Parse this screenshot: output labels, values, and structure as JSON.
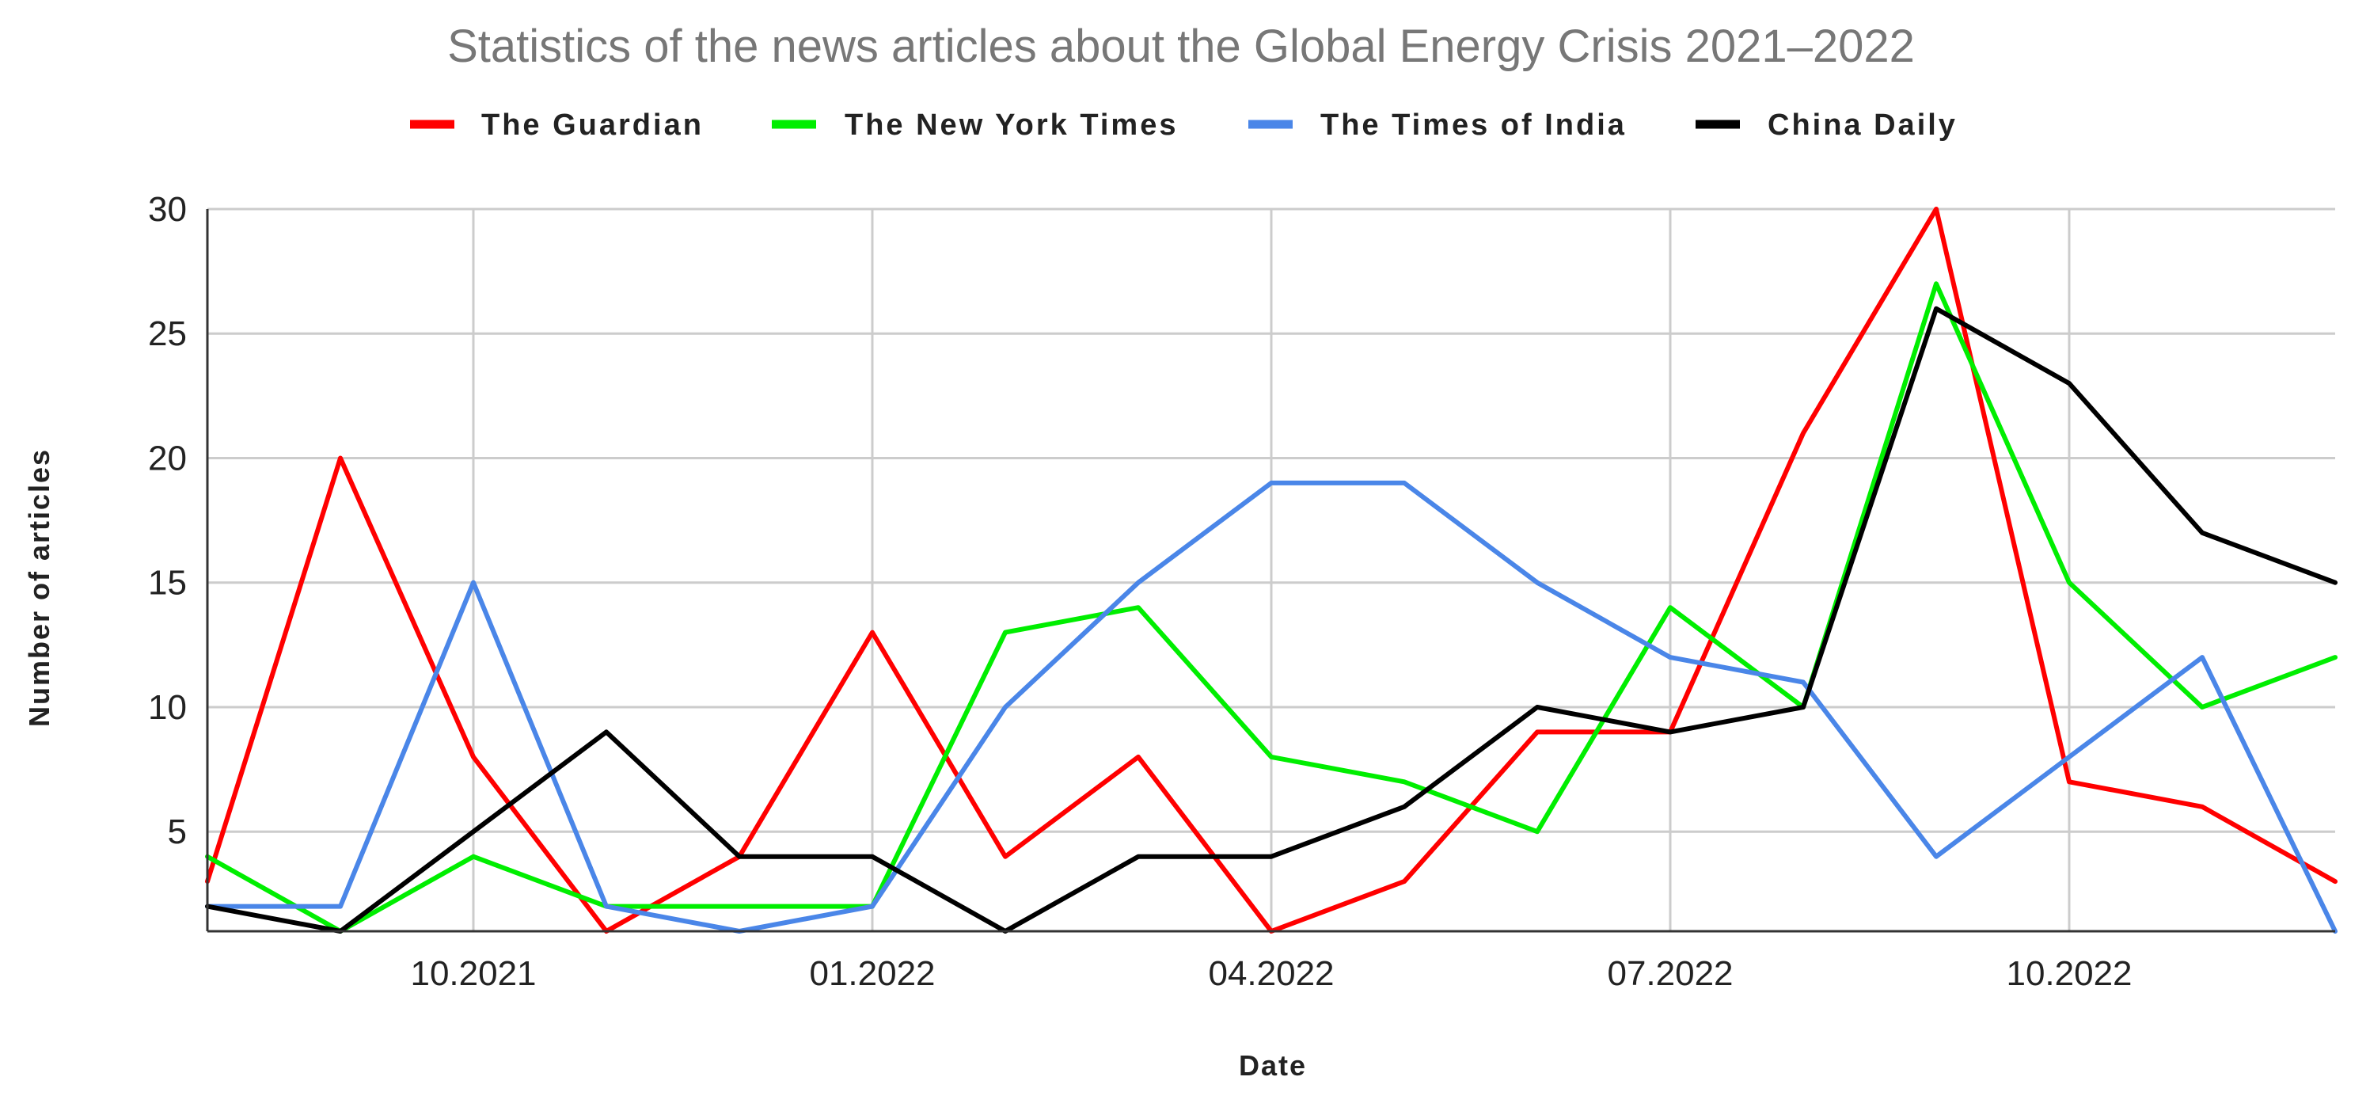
{
  "chart_data": {
    "type": "line",
    "title": "Statistics of the news articles about the Global Energy Crisis 2021–2022",
    "xlabel": "Date",
    "ylabel": "Number of articles",
    "x": [
      "2021-08",
      "2021-09",
      "2021-10",
      "2021-11",
      "2021-12",
      "2022-01",
      "2022-02",
      "2022-03",
      "2022-04",
      "2022-05",
      "2022-06",
      "2022-07",
      "2022-08",
      "2022-09",
      "2022-10",
      "2022-11",
      "2022-12"
    ],
    "x_tick_labels": [
      {
        "x": "2021-10",
        "label": "10.2021"
      },
      {
        "x": "2022-01",
        "label": "01.2022"
      },
      {
        "x": "2022-04",
        "label": "04.2022"
      },
      {
        "x": "2022-07",
        "label": "07.2022"
      },
      {
        "x": "2022-10",
        "label": "10.2022"
      }
    ],
    "y_ticks": [
      5,
      10,
      15,
      20,
      25,
      30
    ],
    "ylim": [
      1,
      30
    ],
    "grid": true,
    "legend_position": "top",
    "series": [
      {
        "name": "The Guardian",
        "color": "#ff0000",
        "values": [
          3,
          20,
          8,
          1,
          4,
          13,
          4,
          8,
          1,
          3,
          9,
          9,
          21,
          30,
          7,
          6,
          3
        ]
      },
      {
        "name": "The New York Times",
        "color": "#00ee00",
        "values": [
          4,
          1,
          4,
          2,
          2,
          2,
          13,
          14,
          8,
          7,
          5,
          14,
          10,
          27,
          15,
          10,
          12
        ]
      },
      {
        "name": "The Times of India",
        "color": "#4a86e8",
        "values": [
          2,
          2,
          15,
          2,
          1,
          2,
          10,
          15,
          19,
          19,
          15,
          12,
          11,
          4,
          8,
          12,
          1
        ]
      },
      {
        "name": "China Daily",
        "color": "#000000",
        "values": [
          2,
          1,
          5,
          9,
          4,
          4,
          1,
          4,
          4,
          6,
          10,
          9,
          10,
          26,
          23,
          17,
          15
        ]
      }
    ]
  }
}
